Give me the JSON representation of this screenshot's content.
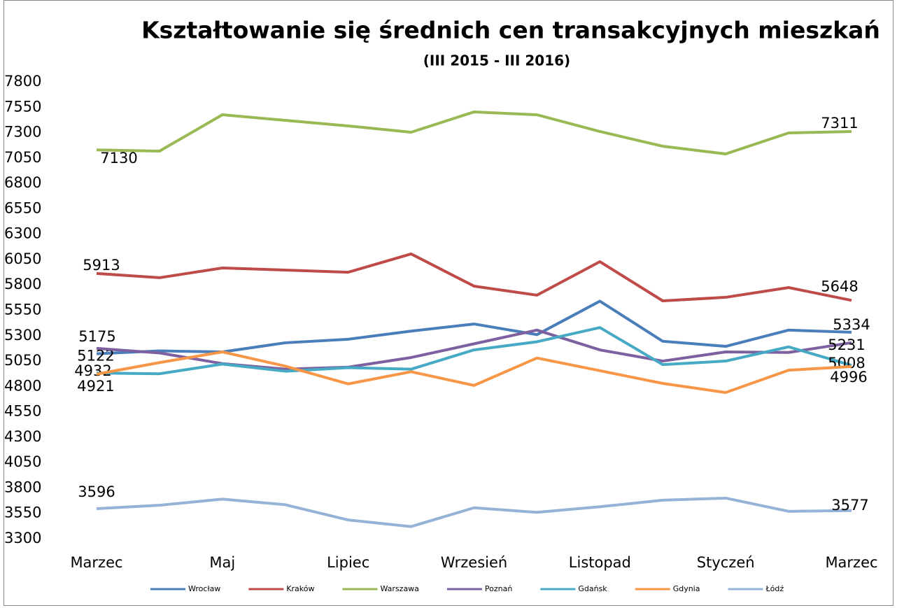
{
  "chart_data": {
    "type": "line",
    "title": "Kształtowanie się średnich cen transakcyjnych mieszkań",
    "subtitle": "(III 2015 - III 2016)",
    "categories": [
      "Marzec",
      null,
      "Maj",
      null,
      "Lipiec",
      null,
      "Wrzesień",
      null,
      "Listopad",
      null,
      "Styczeń",
      null,
      "Marzec"
    ],
    "ylim": [
      3300,
      7800
    ],
    "yticks": [
      3300,
      3550,
      3800,
      4050,
      4300,
      4550,
      4800,
      5050,
      5300,
      5550,
      5800,
      6050,
      6300,
      6550,
      6800,
      7050,
      7300,
      7550,
      7800
    ],
    "series": [
      {
        "name": "Wrocław",
        "color": "#4a7ebb",
        "values": [
          5122,
          5150,
          5140,
          5230,
          5265,
          5345,
          5415,
          5310,
          5640,
          5245,
          5195,
          5355,
          5334
        ]
      },
      {
        "name": "Kraków",
        "color": "#be4b48",
        "values": [
          5913,
          5871,
          5967,
          5946,
          5925,
          6105,
          5788,
          5699,
          6029,
          5643,
          5678,
          5774,
          5648
        ]
      },
      {
        "name": "Warszawa",
        "color": "#98b954",
        "values": [
          7130,
          7118,
          7476,
          7421,
          7366,
          7304,
          7504,
          7476,
          7311,
          7166,
          7090,
          7297,
          7311
        ]
      },
      {
        "name": "Poznań",
        "color": "#7d60a0",
        "values": [
          5175,
          5130,
          5025,
          4970,
          4990,
          5085,
          5220,
          5355,
          5160,
          5050,
          5140,
          5135,
          5231
        ]
      },
      {
        "name": "Gdańsk",
        "color": "#46aac5",
        "values": [
          4932,
          4925,
          5020,
          4950,
          4985,
          4970,
          5160,
          5240,
          5380,
          5015,
          5050,
          5190,
          5008
        ]
      },
      {
        "name": "Gdynia",
        "color": "#f79646",
        "values": [
          4921,
          5035,
          5140,
          5000,
          4825,
          4945,
          4810,
          5080,
          4955,
          4830,
          4740,
          4960,
          4996
        ]
      },
      {
        "name": "Łódź",
        "color": "#95b3d7",
        "values": [
          3596,
          3630,
          3690,
          3635,
          3485,
          3420,
          3605,
          3560,
          3615,
          3680,
          3700,
          3570,
          3577
        ]
      }
    ]
  }
}
